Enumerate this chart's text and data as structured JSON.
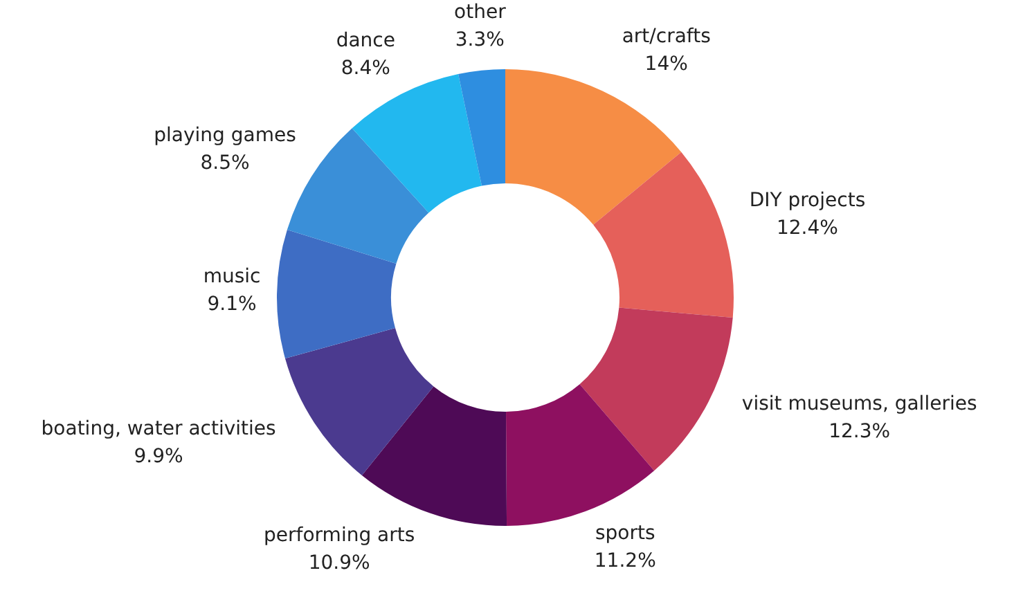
{
  "chart_data": {
    "type": "donut",
    "categories": [
      "art/crafts",
      "DIY projects",
      "visit museums, galleries",
      "sports",
      "performing arts",
      "boating, water activities",
      "music",
      "playing games",
      "dance",
      "other"
    ],
    "values": [
      14,
      12.4,
      12.3,
      11.2,
      10.9,
      9.9,
      9.1,
      8.5,
      8.4,
      3.3
    ],
    "colors": [
      "#f68d45",
      "#e5605a",
      "#c23b5b",
      "#8e1060",
      "#4e0a56",
      "#4b3a8f",
      "#3e6dc4",
      "#3a8fd8",
      "#22b8ef",
      "#2e8ee0"
    ],
    "value_labels": [
      "14%",
      "12.4%",
      "12.3%",
      "11.2%",
      "10.9%",
      "9.9%",
      "9.1%",
      "8.5%",
      "8.4%",
      "3.3%"
    ]
  }
}
